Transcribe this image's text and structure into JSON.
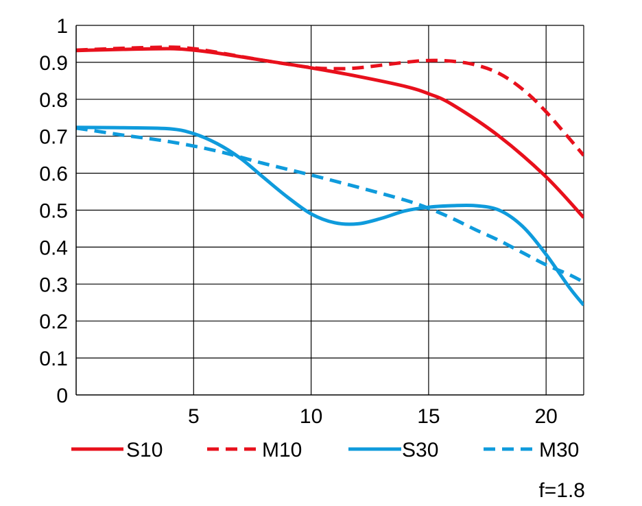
{
  "chart_data": {
    "type": "line",
    "xlim": [
      0,
      21.6
    ],
    "ylim": [
      0,
      1
    ],
    "x_ticks": [
      "5",
      "10",
      "15",
      "20"
    ],
    "y_ticks": [
      "0",
      "0.1",
      "0.2",
      "0.3",
      "0.4",
      "0.5",
      "0.6",
      "0.7",
      "0.8",
      "0.9",
      "1"
    ],
    "grid": true,
    "legend_position": "bottom",
    "note": "f=1.8",
    "series": [
      {
        "name": "S10",
        "color": "#e8101c",
        "dash": "solid",
        "x": [
          0,
          2,
          4,
          5,
          6,
          8,
          10,
          12,
          14,
          15,
          16,
          18,
          20,
          21.6
        ],
        "y": [
          0.932,
          0.935,
          0.937,
          0.933,
          0.925,
          0.905,
          0.885,
          0.862,
          0.835,
          0.815,
          0.786,
          0.7,
          0.59,
          0.48
        ]
      },
      {
        "name": "M10",
        "color": "#e8101c",
        "dash": "dashed",
        "x": [
          0,
          2,
          4,
          5,
          6,
          8,
          10,
          11,
          12,
          14,
          15,
          16,
          17,
          18,
          19,
          20,
          21.6
        ],
        "y": [
          0.933,
          0.938,
          0.941,
          0.937,
          0.927,
          0.905,
          0.886,
          0.883,
          0.885,
          0.9,
          0.905,
          0.903,
          0.893,
          0.87,
          0.827,
          0.766,
          0.648
        ]
      },
      {
        "name": "S30",
        "color": "#0f9bdc",
        "dash": "solid",
        "x": [
          0,
          2,
          4,
          5,
          6,
          7,
          8,
          9,
          10,
          11,
          12,
          13,
          14,
          15,
          16,
          17,
          18,
          19,
          20,
          21,
          21.6
        ],
        "y": [
          0.724,
          0.723,
          0.72,
          0.707,
          0.68,
          0.64,
          0.587,
          0.535,
          0.49,
          0.466,
          0.463,
          0.478,
          0.498,
          0.508,
          0.512,
          0.512,
          0.5,
          0.456,
          0.38,
          0.29,
          0.243
        ]
      },
      {
        "name": "M30",
        "color": "#0f9bdc",
        "dash": "dashed",
        "x": [
          0,
          2,
          4,
          6,
          8,
          10,
          12,
          14,
          15,
          16,
          17,
          18,
          19,
          20,
          21,
          21.6
        ],
        "y": [
          0.722,
          0.703,
          0.685,
          0.66,
          0.626,
          0.595,
          0.562,
          0.527,
          0.505,
          0.478,
          0.447,
          0.418,
          0.385,
          0.352,
          0.325,
          0.305
        ]
      }
    ]
  }
}
